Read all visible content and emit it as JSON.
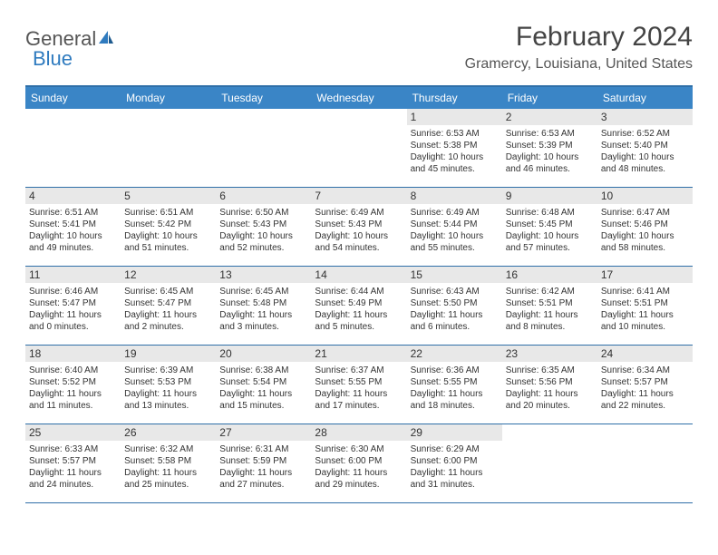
{
  "logo": {
    "part1": "General",
    "part2": "Blue"
  },
  "title": "February 2024",
  "location": "Gramercy, Louisiana, United States",
  "colors": {
    "header_blue": "#3a85c6",
    "border_blue": "#2f6fa8",
    "daynum_bg": "#e8e8e8",
    "logo_blue": "#2f7bbf",
    "text": "#333333"
  },
  "dow": [
    "Sunday",
    "Monday",
    "Tuesday",
    "Wednesday",
    "Thursday",
    "Friday",
    "Saturday"
  ],
  "weeks": [
    [
      null,
      null,
      null,
      null,
      {
        "n": "1",
        "sr": "Sunrise: 6:53 AM",
        "ss": "Sunset: 5:38 PM",
        "d1": "Daylight: 10 hours",
        "d2": "and 45 minutes."
      },
      {
        "n": "2",
        "sr": "Sunrise: 6:53 AM",
        "ss": "Sunset: 5:39 PM",
        "d1": "Daylight: 10 hours",
        "d2": "and 46 minutes."
      },
      {
        "n": "3",
        "sr": "Sunrise: 6:52 AM",
        "ss": "Sunset: 5:40 PM",
        "d1": "Daylight: 10 hours",
        "d2": "and 48 minutes."
      }
    ],
    [
      {
        "n": "4",
        "sr": "Sunrise: 6:51 AM",
        "ss": "Sunset: 5:41 PM",
        "d1": "Daylight: 10 hours",
        "d2": "and 49 minutes."
      },
      {
        "n": "5",
        "sr": "Sunrise: 6:51 AM",
        "ss": "Sunset: 5:42 PM",
        "d1": "Daylight: 10 hours",
        "d2": "and 51 minutes."
      },
      {
        "n": "6",
        "sr": "Sunrise: 6:50 AM",
        "ss": "Sunset: 5:43 PM",
        "d1": "Daylight: 10 hours",
        "d2": "and 52 minutes."
      },
      {
        "n": "7",
        "sr": "Sunrise: 6:49 AM",
        "ss": "Sunset: 5:43 PM",
        "d1": "Daylight: 10 hours",
        "d2": "and 54 minutes."
      },
      {
        "n": "8",
        "sr": "Sunrise: 6:49 AM",
        "ss": "Sunset: 5:44 PM",
        "d1": "Daylight: 10 hours",
        "d2": "and 55 minutes."
      },
      {
        "n": "9",
        "sr": "Sunrise: 6:48 AM",
        "ss": "Sunset: 5:45 PM",
        "d1": "Daylight: 10 hours",
        "d2": "and 57 minutes."
      },
      {
        "n": "10",
        "sr": "Sunrise: 6:47 AM",
        "ss": "Sunset: 5:46 PM",
        "d1": "Daylight: 10 hours",
        "d2": "and 58 minutes."
      }
    ],
    [
      {
        "n": "11",
        "sr": "Sunrise: 6:46 AM",
        "ss": "Sunset: 5:47 PM",
        "d1": "Daylight: 11 hours",
        "d2": "and 0 minutes."
      },
      {
        "n": "12",
        "sr": "Sunrise: 6:45 AM",
        "ss": "Sunset: 5:47 PM",
        "d1": "Daylight: 11 hours",
        "d2": "and 2 minutes."
      },
      {
        "n": "13",
        "sr": "Sunrise: 6:45 AM",
        "ss": "Sunset: 5:48 PM",
        "d1": "Daylight: 11 hours",
        "d2": "and 3 minutes."
      },
      {
        "n": "14",
        "sr": "Sunrise: 6:44 AM",
        "ss": "Sunset: 5:49 PM",
        "d1": "Daylight: 11 hours",
        "d2": "and 5 minutes."
      },
      {
        "n": "15",
        "sr": "Sunrise: 6:43 AM",
        "ss": "Sunset: 5:50 PM",
        "d1": "Daylight: 11 hours",
        "d2": "and 6 minutes."
      },
      {
        "n": "16",
        "sr": "Sunrise: 6:42 AM",
        "ss": "Sunset: 5:51 PM",
        "d1": "Daylight: 11 hours",
        "d2": "and 8 minutes."
      },
      {
        "n": "17",
        "sr": "Sunrise: 6:41 AM",
        "ss": "Sunset: 5:51 PM",
        "d1": "Daylight: 11 hours",
        "d2": "and 10 minutes."
      }
    ],
    [
      {
        "n": "18",
        "sr": "Sunrise: 6:40 AM",
        "ss": "Sunset: 5:52 PM",
        "d1": "Daylight: 11 hours",
        "d2": "and 11 minutes."
      },
      {
        "n": "19",
        "sr": "Sunrise: 6:39 AM",
        "ss": "Sunset: 5:53 PM",
        "d1": "Daylight: 11 hours",
        "d2": "and 13 minutes."
      },
      {
        "n": "20",
        "sr": "Sunrise: 6:38 AM",
        "ss": "Sunset: 5:54 PM",
        "d1": "Daylight: 11 hours",
        "d2": "and 15 minutes."
      },
      {
        "n": "21",
        "sr": "Sunrise: 6:37 AM",
        "ss": "Sunset: 5:55 PM",
        "d1": "Daylight: 11 hours",
        "d2": "and 17 minutes."
      },
      {
        "n": "22",
        "sr": "Sunrise: 6:36 AM",
        "ss": "Sunset: 5:55 PM",
        "d1": "Daylight: 11 hours",
        "d2": "and 18 minutes."
      },
      {
        "n": "23",
        "sr": "Sunrise: 6:35 AM",
        "ss": "Sunset: 5:56 PM",
        "d1": "Daylight: 11 hours",
        "d2": "and 20 minutes."
      },
      {
        "n": "24",
        "sr": "Sunrise: 6:34 AM",
        "ss": "Sunset: 5:57 PM",
        "d1": "Daylight: 11 hours",
        "d2": "and 22 minutes."
      }
    ],
    [
      {
        "n": "25",
        "sr": "Sunrise: 6:33 AM",
        "ss": "Sunset: 5:57 PM",
        "d1": "Daylight: 11 hours",
        "d2": "and 24 minutes."
      },
      {
        "n": "26",
        "sr": "Sunrise: 6:32 AM",
        "ss": "Sunset: 5:58 PM",
        "d1": "Daylight: 11 hours",
        "d2": "and 25 minutes."
      },
      {
        "n": "27",
        "sr": "Sunrise: 6:31 AM",
        "ss": "Sunset: 5:59 PM",
        "d1": "Daylight: 11 hours",
        "d2": "and 27 minutes."
      },
      {
        "n": "28",
        "sr": "Sunrise: 6:30 AM",
        "ss": "Sunset: 6:00 PM",
        "d1": "Daylight: 11 hours",
        "d2": "and 29 minutes."
      },
      {
        "n": "29",
        "sr": "Sunrise: 6:29 AM",
        "ss": "Sunset: 6:00 PM",
        "d1": "Daylight: 11 hours",
        "d2": "and 31 minutes."
      },
      null,
      null
    ]
  ]
}
